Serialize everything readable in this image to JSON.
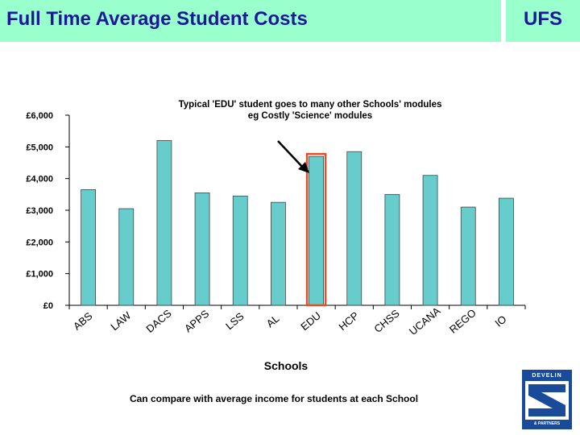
{
  "header": {
    "title": "Full Time Average Student Costs",
    "logo": "UFS"
  },
  "annotation": {
    "line1": "Typical 'EDU' student goes to many other Schools' modules",
    "line2": "eg Costly 'Science' modules"
  },
  "footnote": "Can compare with average income for students at each School",
  "brand": {
    "top": "DEVELIN",
    "bottom": "& PARTNERS"
  },
  "colors": {
    "header_bg": "#99ffcc",
    "title_text": "#1a1a99",
    "bar_fill": "#66cccc",
    "highlight": "#e0502a",
    "brand_bg": "#1a4a9a"
  },
  "chart_data": {
    "type": "bar",
    "title": "",
    "xlabel": "Schools",
    "ylabel": "",
    "ylim": [
      0,
      6000
    ],
    "yticks": [
      0,
      1000,
      2000,
      3000,
      4000,
      5000,
      6000
    ],
    "ytick_labels": [
      "£0",
      "£1,000",
      "£2,000",
      "£3,000",
      "£4,000",
      "£5,000",
      "£6,000"
    ],
    "categories": [
      "ABS",
      "LAW",
      "DACS",
      "APPS",
      "LSS",
      "AL",
      "EDU",
      "HCP",
      "CHSS",
      "UCANA",
      "REGO",
      "IO"
    ],
    "values": [
      3650,
      3050,
      5200,
      3550,
      3450,
      3250,
      4700,
      4850,
      3500,
      4100,
      3100,
      3380
    ],
    "highlight": "EDU",
    "grid": false,
    "legend": "none"
  }
}
